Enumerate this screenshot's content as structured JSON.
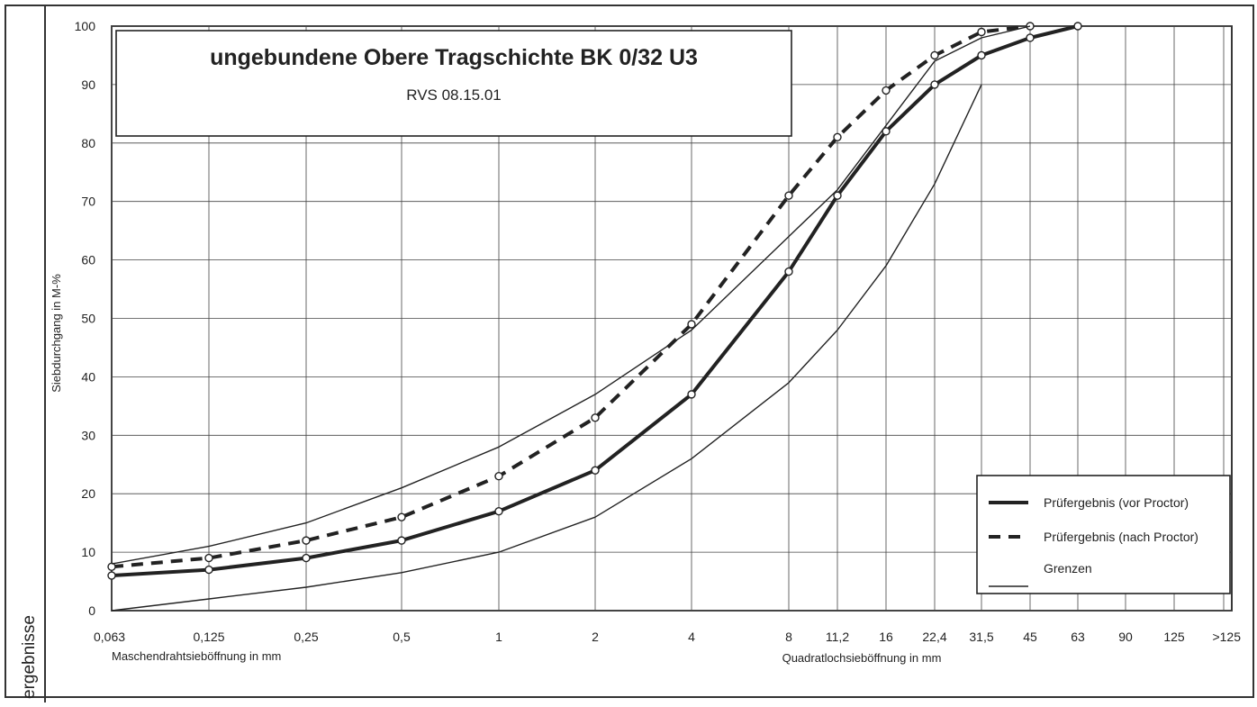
{
  "side_label": "ergebnisse",
  "chart_data": {
    "type": "line",
    "title": "ungebundene Obere Tragschichte BK 0/32 U3",
    "subtitle": "RVS 08.15.01",
    "ylabel": "Siebdurchgang in M-%",
    "xlabel_left": "Maschendrahtsieböffnung in mm",
    "xlabel_right": "Quadratlochsieböffnung in mm",
    "ylim": [
      0,
      100
    ],
    "yticks": [
      0,
      10,
      20,
      30,
      40,
      50,
      60,
      70,
      80,
      90,
      100
    ],
    "categories": [
      "0,063",
      "0,125",
      "0,25",
      "0,5",
      "1",
      "2",
      "4",
      "8",
      "11,2",
      "16",
      "22,4",
      "31,5",
      "45",
      "63",
      "90",
      "125",
      ">125"
    ],
    "grid": true,
    "legend_position": "bottom-right",
    "series": [
      {
        "name": "Prüfergebnis (vor Proctor)",
        "style": "thick-solid",
        "markers": true,
        "x": [
          "0,063",
          "0,125",
          "0,25",
          "0,5",
          "1",
          "2",
          "4",
          "8",
          "11,2",
          "16",
          "22,4",
          "31,5",
          "45",
          "63"
        ],
        "values": [
          6,
          7,
          9,
          12,
          17,
          24,
          37,
          58,
          71,
          82,
          90,
          95,
          98,
          100
        ]
      },
      {
        "name": "Prüfergebnis (nach Proctor)",
        "style": "thick-dashed",
        "markers": true,
        "x": [
          "0,063",
          "0,125",
          "0,25",
          "0,5",
          "1",
          "2",
          "4",
          "8",
          "11,2",
          "16",
          "22,4",
          "31,5",
          "45"
        ],
        "values": [
          7.5,
          9,
          12,
          16,
          23,
          33,
          49,
          71,
          81,
          89,
          95,
          99,
          100
        ]
      },
      {
        "name": "Grenzen",
        "style": "thin-solid",
        "markers": false,
        "x": [
          "0,063",
          "0,125",
          "0,25",
          "0,5",
          "1",
          "2",
          "4",
          "8",
          "11,2",
          "16",
          "22,4",
          "31,5",
          "45"
        ],
        "values": [
          8,
          11,
          15,
          21,
          28,
          37,
          48,
          64,
          72,
          83,
          94,
          98,
          100
        ]
      },
      {
        "name": "",
        "style": "thin-solid",
        "markers": false,
        "x": [
          "0,063",
          "0,125",
          "0,25",
          "0,5",
          "1",
          "2",
          "4",
          "8",
          "11,2",
          "16",
          "22,4",
          "31,5"
        ],
        "values": [
          0,
          2,
          4,
          6.5,
          10,
          16,
          26,
          39,
          48,
          59,
          73,
          90
        ]
      }
    ]
  }
}
